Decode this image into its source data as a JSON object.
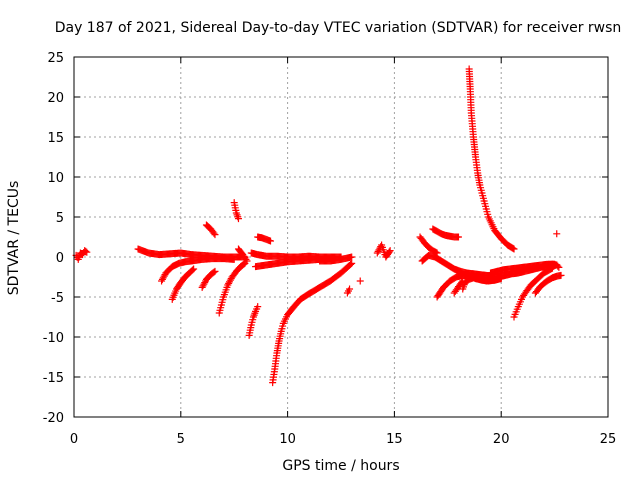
{
  "chart_data": {
    "type": "scatter",
    "title": "Day 187 of 2021, Sidereal Day-to-day VTEC variation (SDTVAR) for receiver rwsn",
    "xlabel": "GPS time / hours",
    "ylabel": "SDTVAR / TECUs",
    "xlim": [
      0,
      25
    ],
    "ylim": [
      -20,
      25
    ],
    "xticks": [
      0,
      5,
      10,
      15,
      20,
      25
    ],
    "yticks": [
      -20,
      -15,
      -10,
      -5,
      0,
      5,
      10,
      15,
      20,
      25
    ],
    "grid": true,
    "marker": "+",
    "marker_color": "#ff0000",
    "series": [
      {
        "name": "SDTVAR",
        "tracks": [
          {
            "x": [
              0.1,
              0.2,
              0.3,
              0.4,
              0.5,
              0.6
            ],
            "y": [
              0.2,
              -0.3,
              0.5,
              0.3,
              0.8,
              0.6
            ]
          },
          {
            "x": [
              3.0,
              3.5,
              4.0,
              4.5,
              5.0,
              5.5,
              6.0,
              6.5,
              7.0,
              7.5,
              8.0
            ],
            "y": [
              1.0,
              0.5,
              0.3,
              0.4,
              0.5,
              0.3,
              0.2,
              0.1,
              0.0,
              0.0,
              0.0
            ]
          },
          {
            "x": [
              4.1,
              4.3,
              4.6,
              4.9,
              5.2,
              5.5,
              6.0,
              6.5,
              7.0,
              7.5
            ],
            "y": [
              -3.0,
              -2.0,
              -1.2,
              -0.8,
              -0.6,
              -0.5,
              -0.3,
              -0.2,
              -0.2,
              -0.3
            ]
          },
          {
            "x": [
              4.6,
              4.8,
              5.0,
              5.2,
              5.4,
              5.6
            ],
            "y": [
              -5.3,
              -4.0,
              -3.2,
              -2.5,
              -2.0,
              -1.5
            ]
          },
          {
            "x": [
              6.0,
              6.2,
              6.4,
              6.6
            ],
            "y": [
              -3.8,
              -2.8,
              -2.2,
              -1.8
            ]
          },
          {
            "x": [
              6.2,
              6.4,
              6.6
            ],
            "y": [
              4.0,
              3.5,
              2.8
            ]
          },
          {
            "x": [
              6.8,
              7.0,
              7.2,
              7.4,
              7.6,
              7.8,
              8.0
            ],
            "y": [
              -7.0,
              -5.0,
              -3.5,
              -2.5,
              -1.8,
              -1.2,
              -0.8
            ]
          },
          {
            "x": [
              7.5,
              7.6,
              7.7
            ],
            "y": [
              6.8,
              5.5,
              4.8
            ]
          },
          {
            "x": [
              7.7,
              7.9,
              8.1
            ],
            "y": [
              1.0,
              0.3,
              -0.5
            ]
          },
          {
            "x": [
              8.2,
              8.3,
              8.4,
              8.5,
              8.6
            ],
            "y": [
              -9.8,
              -8.5,
              -7.5,
              -6.8,
              -6.2
            ]
          },
          {
            "x": [
              8.3,
              8.6,
              9.0,
              9.5,
              10.0,
              10.5,
              11.0,
              11.5,
              12.0,
              12.5
            ],
            "y": [
              0.5,
              0.3,
              0.1,
              0.1,
              0.0,
              0.0,
              0.1,
              0.0,
              0.0,
              0.0
            ]
          },
          {
            "x": [
              8.6,
              8.8,
              9.0,
              9.2
            ],
            "y": [
              2.5,
              2.4,
              2.2,
              2.0
            ]
          },
          {
            "x": [
              8.5,
              9.0,
              9.5,
              10.0,
              10.5,
              11.0,
              11.5,
              12.0
            ],
            "y": [
              -1.2,
              -1.0,
              -0.8,
              -0.6,
              -0.5,
              -0.4,
              -0.3,
              -0.2
            ]
          },
          {
            "x": [
              9.3,
              9.4,
              9.5,
              9.6,
              9.7,
              9.8,
              10.0,
              10.3,
              10.6,
              11.0,
              11.5,
              12.0,
              12.5,
              13.0
            ],
            "y": [
              -15.7,
              -14.0,
              -12.0,
              -10.5,
              -9.3,
              -8.3,
              -7.2,
              -6.2,
              -5.3,
              -4.6,
              -3.8,
              -3.0,
              -2.0,
              -0.8
            ]
          },
          {
            "x": [
              11.5,
              12.0,
              12.5,
              13.0
            ],
            "y": [
              -0.5,
              -0.5,
              -0.3,
              0.0
            ]
          },
          {
            "x": [
              12.8,
              12.9
            ],
            "y": [
              -4.5,
              -4.0
            ]
          },
          {
            "x": [
              13.4
            ],
            "y": [
              -3.0
            ]
          },
          {
            "x": [
              14.2,
              14.4,
              14.6,
              14.8
            ],
            "y": [
              0.5,
              1.5,
              0.0,
              0.8
            ]
          },
          {
            "x": [
              16.3,
              16.6,
              16.9,
              17.2,
              17.5,
              17.8,
              18.1,
              18.4,
              18.7,
              19.0,
              19.3,
              19.6,
              19.9,
              20.2,
              20.5,
              20.8,
              21.1,
              21.4,
              21.7,
              22.0,
              22.3,
              22.6
            ],
            "y": [
              -0.5,
              0.2,
              0.0,
              -0.5,
              -1.0,
              -1.5,
              -1.8,
              -2.0,
              -2.1,
              -2.2,
              -2.3,
              -2.4,
              -2.4,
              -2.3,
              -2.1,
              -2.0,
              -1.8,
              -1.6,
              -1.4,
              -1.2,
              -1.1,
              -1.0
            ]
          },
          {
            "x": [
              16.2,
              16.4,
              16.6,
              16.8,
              17.0
            ],
            "y": [
              2.5,
              1.8,
              1.2,
              0.8,
              0.5
            ]
          },
          {
            "x": [
              16.8,
              17.0,
              17.2,
              17.4,
              17.6,
              17.8,
              18.0
            ],
            "y": [
              3.5,
              3.2,
              2.9,
              2.7,
              2.6,
              2.5,
              2.5
            ]
          },
          {
            "x": [
              17.0,
              17.3,
              17.6,
              17.9,
              18.2,
              18.5,
              18.8,
              19.1,
              19.4,
              19.7,
              20.0
            ],
            "y": [
              -5.0,
              -3.8,
              -3.0,
              -2.5,
              -2.3,
              -2.4,
              -2.7,
              -2.9,
              -3.0,
              -2.9,
              -2.7
            ]
          },
          {
            "x": [
              17.8,
              18.0,
              18.2
            ],
            "y": [
              -4.5,
              -3.7,
              -3.0
            ]
          },
          {
            "x": [
              18.2,
              18.3,
              18.5,
              18.7,
              18.9,
              19.1,
              19.3,
              19.5,
              19.7,
              20.0
            ],
            "y": [
              -4.0,
              -3.2,
              -2.8,
              -2.6,
              -2.6,
              -2.8,
              -3.0,
              -2.9,
              -2.8,
              -2.6
            ]
          },
          {
            "x": [
              18.5,
              18.55,
              18.6,
              18.7,
              18.8,
              18.9,
              19.0,
              19.2,
              19.4,
              19.7,
              20.0,
              20.3,
              20.6
            ],
            "y": [
              23.5,
              21.0,
              18.0,
              15.0,
              12.5,
              10.5,
              9.0,
              7.0,
              5.0,
              3.3,
              2.3,
              1.5,
              1.0
            ]
          },
          {
            "x": [
              19.5,
              19.8,
              20.1,
              20.4,
              20.7,
              21.0,
              21.3,
              21.6,
              21.9,
              22.2,
              22.5
            ],
            "y": [
              -2.0,
              -1.8,
              -1.6,
              -1.5,
              -1.4,
              -1.3,
              -1.2,
              -1.1,
              -1.0,
              -0.9,
              -0.9
            ]
          },
          {
            "x": [
              20.6,
              20.8,
              21.0,
              21.2,
              21.4,
              21.6,
              21.8,
              22.0,
              22.2,
              22.4
            ],
            "y": [
              -7.5,
              -6.2,
              -5.0,
              -4.2,
              -3.5,
              -3.0,
              -2.5,
              -2.0,
              -1.7,
              -1.4
            ]
          },
          {
            "x": [
              21.6,
              21.8,
              22.0,
              22.2,
              22.4,
              22.6,
              22.8
            ],
            "y": [
              -4.5,
              -3.8,
              -3.3,
              -2.9,
              -2.6,
              -2.4,
              -2.3
            ]
          },
          {
            "x": [
              22.2,
              22.4,
              22.6,
              22.7
            ],
            "y": [
              -1.0,
              -0.9,
              -1.0,
              -1.3
            ]
          },
          {
            "x": [
              22.6
            ],
            "y": [
              2.9
            ]
          }
        ]
      }
    ]
  }
}
